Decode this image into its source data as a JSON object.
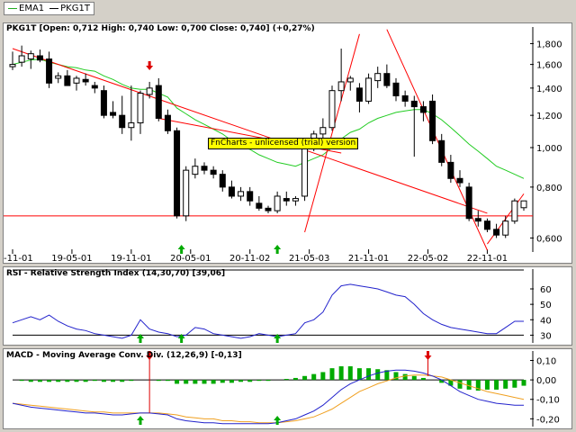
{
  "legend": {
    "items": [
      {
        "label": "EMA1",
        "color": "#22aa22"
      },
      {
        "label": "PKG1T",
        "color": "#000000"
      }
    ]
  },
  "colors": {
    "ema": "#22cc22",
    "trend": "#ff0000",
    "rsi": "#2222cc",
    "macd": "#2222cc",
    "signal": "#f0a020",
    "hist": "#00aa00",
    "buy": "#00aa00",
    "sell": "#dd0000"
  },
  "trial_text": "FnCharts - unlicensed (trial) version",
  "chart_data": [
    {
      "type": "candlestick",
      "title": "PKG1T [Open: 0,712  High: 0,740  Low: 0,700  Close: 0,740] (+0,27%)",
      "y_scale": "log",
      "ylim": [
        0.56,
        1.86
      ],
      "y_ticks": [
        "1,800",
        "1,600",
        "1,400",
        "1,200",
        "1,000",
        "0,800",
        "0,600"
      ],
      "y_tick_values": [
        1.8,
        1.6,
        1.4,
        1.2,
        1.0,
        0.8,
        0.6
      ],
      "x_ticks": [
        "18-11-01",
        "19-05-01",
        "19-11-01",
        "20-05-01",
        "20-11-02",
        "21-05-03",
        "21-11-01",
        "22-05-02",
        "22-11-01"
      ],
      "x_tick_index": [
        0,
        6.5,
        13,
        19.5,
        26,
        32.5,
        39,
        45.5,
        52
      ],
      "x_count": 57,
      "candles": [
        {
          "o": 1.58,
          "h": 1.72,
          "l": 1.55,
          "c": 1.6
        },
        {
          "o": 1.62,
          "h": 1.78,
          "l": 1.58,
          "c": 1.68
        },
        {
          "o": 1.65,
          "h": 1.73,
          "l": 1.56,
          "c": 1.7
        },
        {
          "o": 1.68,
          "h": 1.74,
          "l": 1.62,
          "c": 1.64
        },
        {
          "o": 1.65,
          "h": 1.72,
          "l": 1.4,
          "c": 1.44
        },
        {
          "o": 1.48,
          "h": 1.53,
          "l": 1.44,
          "c": 1.5
        },
        {
          "o": 1.5,
          "h": 1.55,
          "l": 1.42,
          "c": 1.42
        },
        {
          "o": 1.44,
          "h": 1.5,
          "l": 1.38,
          "c": 1.48
        },
        {
          "o": 1.47,
          "h": 1.52,
          "l": 1.42,
          "c": 1.45
        },
        {
          "o": 1.42,
          "h": 1.45,
          "l": 1.36,
          "c": 1.4
        },
        {
          "o": 1.38,
          "h": 1.42,
          "l": 1.18,
          "c": 1.2
        },
        {
          "o": 1.22,
          "h": 1.3,
          "l": 1.18,
          "c": 1.2
        },
        {
          "o": 1.2,
          "h": 1.34,
          "l": 1.08,
          "c": 1.12
        },
        {
          "o": 1.12,
          "h": 1.42,
          "l": 1.04,
          "c": 1.15
        },
        {
          "o": 1.15,
          "h": 1.38,
          "l": 1.08,
          "c": 1.36
        },
        {
          "o": 1.35,
          "h": 1.45,
          "l": 1.32,
          "c": 1.4
        },
        {
          "o": 1.42,
          "h": 1.48,
          "l": 1.16,
          "c": 1.18
        },
        {
          "o": 1.2,
          "h": 1.24,
          "l": 1.08,
          "c": 1.1
        },
        {
          "o": 1.1,
          "h": 1.12,
          "l": 0.67,
          "c": 0.68
        },
        {
          "o": 0.68,
          "h": 0.9,
          "l": 0.66,
          "c": 0.88
        },
        {
          "o": 0.86,
          "h": 0.94,
          "l": 0.84,
          "c": 0.9
        },
        {
          "o": 0.9,
          "h": 0.92,
          "l": 0.86,
          "c": 0.88
        },
        {
          "o": 0.88,
          "h": 0.9,
          "l": 0.84,
          "c": 0.86
        },
        {
          "o": 0.86,
          "h": 0.88,
          "l": 0.78,
          "c": 0.8
        },
        {
          "o": 0.8,
          "h": 0.83,
          "l": 0.75,
          "c": 0.76
        },
        {
          "o": 0.76,
          "h": 0.8,
          "l": 0.74,
          "c": 0.78
        },
        {
          "o": 0.78,
          "h": 0.8,
          "l": 0.72,
          "c": 0.74
        },
        {
          "o": 0.73,
          "h": 0.76,
          "l": 0.7,
          "c": 0.71
        },
        {
          "o": 0.71,
          "h": 0.72,
          "l": 0.69,
          "c": 0.7
        },
        {
          "o": 0.7,
          "h": 0.78,
          "l": 0.69,
          "c": 0.76
        },
        {
          "o": 0.75,
          "h": 0.78,
          "l": 0.72,
          "c": 0.74
        },
        {
          "o": 0.74,
          "h": 0.76,
          "l": 0.72,
          "c": 0.75
        },
        {
          "o": 0.76,
          "h": 1.05,
          "l": 0.74,
          "c": 1.02
        },
        {
          "o": 1.02,
          "h": 1.1,
          "l": 0.98,
          "c": 1.08
        },
        {
          "o": 1.08,
          "h": 1.18,
          "l": 1.02,
          "c": 1.12
        },
        {
          "o": 1.12,
          "h": 1.42,
          "l": 1.1,
          "c": 1.38
        },
        {
          "o": 1.38,
          "h": 1.75,
          "l": 1.3,
          "c": 1.45
        },
        {
          "o": 1.45,
          "h": 1.5,
          "l": 1.38,
          "c": 1.48
        },
        {
          "o": 1.4,
          "h": 1.44,
          "l": 1.22,
          "c": 1.3
        },
        {
          "o": 1.3,
          "h": 1.52,
          "l": 1.28,
          "c": 1.48
        },
        {
          "o": 1.46,
          "h": 1.58,
          "l": 1.4,
          "c": 1.52
        },
        {
          "o": 1.52,
          "h": 1.6,
          "l": 1.4,
          "c": 1.42
        },
        {
          "o": 1.44,
          "h": 1.48,
          "l": 1.3,
          "c": 1.34
        },
        {
          "o": 1.34,
          "h": 1.38,
          "l": 1.26,
          "c": 1.3
        },
        {
          "o": 1.3,
          "h": 1.34,
          "l": 0.95,
          "c": 1.26
        },
        {
          "o": 1.26,
          "h": 1.3,
          "l": 1.16,
          "c": 1.22
        },
        {
          "o": 1.3,
          "h": 1.35,
          "l": 1.02,
          "c": 1.04
        },
        {
          "o": 1.04,
          "h": 1.08,
          "l": 0.9,
          "c": 0.92
        },
        {
          "o": 0.92,
          "h": 0.96,
          "l": 0.82,
          "c": 0.84
        },
        {
          "o": 0.84,
          "h": 0.88,
          "l": 0.8,
          "c": 0.82
        },
        {
          "o": 0.8,
          "h": 0.82,
          "l": 0.66,
          "c": 0.67
        },
        {
          "o": 0.67,
          "h": 0.7,
          "l": 0.64,
          "c": 0.66
        },
        {
          "o": 0.66,
          "h": 0.67,
          "l": 0.62,
          "c": 0.63
        },
        {
          "o": 0.63,
          "h": 0.65,
          "l": 0.6,
          "c": 0.61
        },
        {
          "o": 0.61,
          "h": 0.68,
          "l": 0.6,
          "c": 0.66
        },
        {
          "o": 0.66,
          "h": 0.75,
          "l": 0.65,
          "c": 0.74
        },
        {
          "o": 0.712,
          "h": 0.74,
          "l": 0.7,
          "c": 0.74
        }
      ],
      "ema": [
        1.6,
        1.62,
        1.64,
        1.65,
        1.62,
        1.6,
        1.58,
        1.57,
        1.55,
        1.54,
        1.5,
        1.47,
        1.43,
        1.4,
        1.39,
        1.39,
        1.36,
        1.33,
        1.25,
        1.21,
        1.17,
        1.14,
        1.11,
        1.08,
        1.04,
        1.01,
        0.99,
        0.96,
        0.94,
        0.92,
        0.91,
        0.9,
        0.92,
        0.94,
        0.96,
        1.0,
        1.05,
        1.09,
        1.11,
        1.15,
        1.18,
        1.2,
        1.22,
        1.23,
        1.24,
        1.24,
        1.21,
        1.17,
        1.12,
        1.07,
        1.02,
        0.98,
        0.94,
        0.9,
        0.88,
        0.86,
        0.84
      ],
      "support_level": 0.68,
      "trend_lines": [
        {
          "from": [
            0,
            1.75
          ],
          "to": [
            52,
            0.69
          ]
        },
        {
          "from": [
            16,
            1.18
          ],
          "to": [
            36,
            0.97
          ]
        },
        {
          "from": [
            32,
            0.62
          ],
          "to": [
            38,
            1.9
          ]
        },
        {
          "from": [
            41,
            1.95
          ],
          "to": [
            52,
            0.56
          ]
        },
        {
          "from": [
            52,
            0.58
          ],
          "to": [
            56,
            0.77
          ]
        }
      ],
      "buy_signals": [
        18.5,
        29
      ],
      "sell_signals": [
        15
      ]
    },
    {
      "type": "line",
      "title": "RSI - Relative Strength Index (14,30,70) [39,06]",
      "ylim": [
        25,
        67
      ],
      "y_ticks": [
        "60",
        "50",
        "40",
        "30"
      ],
      "y_tick_values": [
        60,
        50,
        40,
        30
      ],
      "upper_line": 70,
      "lower_line": 30,
      "values": [
        38,
        40,
        42,
        40,
        43,
        39,
        36,
        34,
        33,
        31,
        30,
        29,
        28,
        30,
        40,
        34,
        32,
        31,
        29,
        30,
        35,
        34,
        31,
        30,
        29,
        28,
        29,
        31,
        30,
        29,
        30,
        31,
        38,
        40,
        45,
        56,
        62,
        63,
        62,
        61,
        60,
        58,
        56,
        55,
        50,
        44,
        40,
        37,
        35,
        34,
        33,
        32,
        31,
        31,
        35,
        39,
        39
      ],
      "buy_signals": [
        14,
        18.5,
        29
      ]
    },
    {
      "type": "bar+line",
      "title": "MACD - Moving Average Conv. Div. (12,26,9) [-0,13]",
      "ylim": [
        -0.24,
        0.13
      ],
      "y_ticks": [
        "0,10",
        "0,00",
        "-0,10",
        "-0,20"
      ],
      "y_tick_values": [
        0.1,
        0.0,
        -0.1,
        -0.2
      ],
      "macd": [
        -0.12,
        -0.13,
        -0.14,
        -0.145,
        -0.15,
        -0.155,
        -0.16,
        -0.165,
        -0.17,
        -0.17,
        -0.175,
        -0.18,
        -0.18,
        -0.175,
        -0.17,
        -0.17,
        -0.175,
        -0.18,
        -0.2,
        -0.21,
        -0.215,
        -0.22,
        -0.22,
        -0.225,
        -0.225,
        -0.225,
        -0.225,
        -0.225,
        -0.225,
        -0.22,
        -0.21,
        -0.2,
        -0.18,
        -0.16,
        -0.13,
        -0.09,
        -0.05,
        -0.02,
        0.0,
        0.02,
        0.035,
        0.045,
        0.05,
        0.05,
        0.045,
        0.035,
        0.02,
        0.0,
        -0.03,
        -0.06,
        -0.08,
        -0.1,
        -0.11,
        -0.12,
        -0.125,
        -0.13,
        -0.13
      ],
      "signal": [
        -0.12,
        -0.125,
        -0.13,
        -0.135,
        -0.14,
        -0.145,
        -0.15,
        -0.155,
        -0.16,
        -0.165,
        -0.165,
        -0.17,
        -0.17,
        -0.17,
        -0.17,
        -0.17,
        -0.17,
        -0.175,
        -0.18,
        -0.19,
        -0.195,
        -0.2,
        -0.2,
        -0.21,
        -0.21,
        -0.215,
        -0.215,
        -0.22,
        -0.22,
        -0.22,
        -0.215,
        -0.21,
        -0.2,
        -0.19,
        -0.17,
        -0.15,
        -0.12,
        -0.09,
        -0.06,
        -0.04,
        -0.02,
        -0.005,
        0.01,
        0.02,
        0.025,
        0.025,
        0.02,
        0.015,
        0.0,
        -0.015,
        -0.03,
        -0.045,
        -0.06,
        -0.07,
        -0.08,
        -0.09,
        -0.1
      ],
      "histogram": [
        0.0,
        -0.005,
        -0.01,
        -0.01,
        -0.01,
        -0.01,
        -0.01,
        -0.01,
        -0.01,
        -0.005,
        -0.01,
        -0.01,
        -0.01,
        -0.005,
        0.0,
        0.0,
        -0.005,
        -0.005,
        -0.02,
        -0.02,
        -0.02,
        -0.02,
        -0.02,
        -0.015,
        -0.015,
        -0.01,
        -0.01,
        -0.005,
        -0.005,
        0.0,
        0.005,
        0.01,
        0.02,
        0.03,
        0.04,
        0.06,
        0.07,
        0.07,
        0.06,
        0.06,
        0.055,
        0.05,
        0.04,
        0.03,
        0.02,
        0.01,
        0.0,
        -0.015,
        -0.03,
        -0.045,
        -0.05,
        -0.055,
        -0.05,
        -0.05,
        -0.045,
        -0.04,
        -0.03
      ],
      "buy_signals": [
        14,
        29
      ],
      "sell_signals": [
        15,
        45.5
      ]
    }
  ]
}
